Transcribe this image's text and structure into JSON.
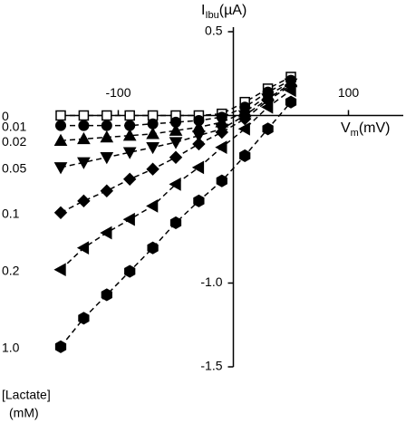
{
  "chart_data": {
    "type": "line",
    "y_label": {
      "symbol": "I",
      "subscript": "Ibu",
      "unit": "(µA)"
    },
    "x_label": {
      "symbol": "V",
      "subscript": "m",
      "unit": "(mV)"
    },
    "legend_title": [
      "[Lactate]",
      "(mM)"
    ],
    "x": [
      -150,
      -130,
      -110,
      -90,
      -70,
      -50,
      -30,
      -10,
      10,
      30,
      50
    ],
    "xlim": [
      -150,
      150
    ],
    "xticks": [
      -100,
      100
    ],
    "ylim": [
      -1.5,
      0.5
    ],
    "yticks": [
      0.5,
      {
        "value": -1,
        "label": "-1.0"
      },
      -1.5
    ],
    "line_style": "dashed",
    "series": [
      {
        "name": "0",
        "color": "#000000",
        "marker": "open-square",
        "values": [
          0,
          0,
          0,
          0,
          0,
          0,
          0,
          0.01,
          0.08,
          0.16,
          0.23
        ]
      },
      {
        "name": "0.01",
        "color": "#000000",
        "marker": "circle",
        "values": [
          -0.06,
          -0.06,
          -0.06,
          -0.06,
          -0.05,
          -0.04,
          -0.03,
          -0.01,
          0.05,
          0.14,
          0.21
        ]
      },
      {
        "name": "0.02",
        "color": "#000000",
        "marker": "triangle-up",
        "values": [
          -0.15,
          -0.14,
          -0.13,
          -0.12,
          -0.11,
          -0.09,
          -0.07,
          -0.04,
          0.02,
          0.12,
          0.2
        ]
      },
      {
        "name": "0.05",
        "color": "#000000",
        "marker": "triangle-down",
        "values": [
          -0.31,
          -0.28,
          -0.25,
          -0.22,
          -0.19,
          -0.16,
          -0.12,
          -0.08,
          0,
          0.1,
          0.19
        ]
      },
      {
        "name": "0.1",
        "color": "#000000",
        "marker": "diamond",
        "values": [
          -0.58,
          -0.51,
          -0.45,
          -0.38,
          -0.32,
          -0.25,
          -0.17,
          -0.1,
          -0.02,
          0.09,
          0.18
        ]
      },
      {
        "name": "0.2",
        "color": "#000000",
        "marker": "triangle-left",
        "values": [
          -0.92,
          -0.79,
          -0.7,
          -0.62,
          -0.54,
          -0.41,
          -0.31,
          -0.19,
          -0.08,
          0.05,
          0.15
        ]
      },
      {
        "name": "1.0",
        "color": "#000000",
        "marker": "hexagon",
        "values": [
          -1.38,
          -1.21,
          -1.07,
          -0.93,
          -0.79,
          -0.64,
          -0.51,
          -0.39,
          -0.24,
          -0.08,
          0.08
        ]
      }
    ]
  }
}
